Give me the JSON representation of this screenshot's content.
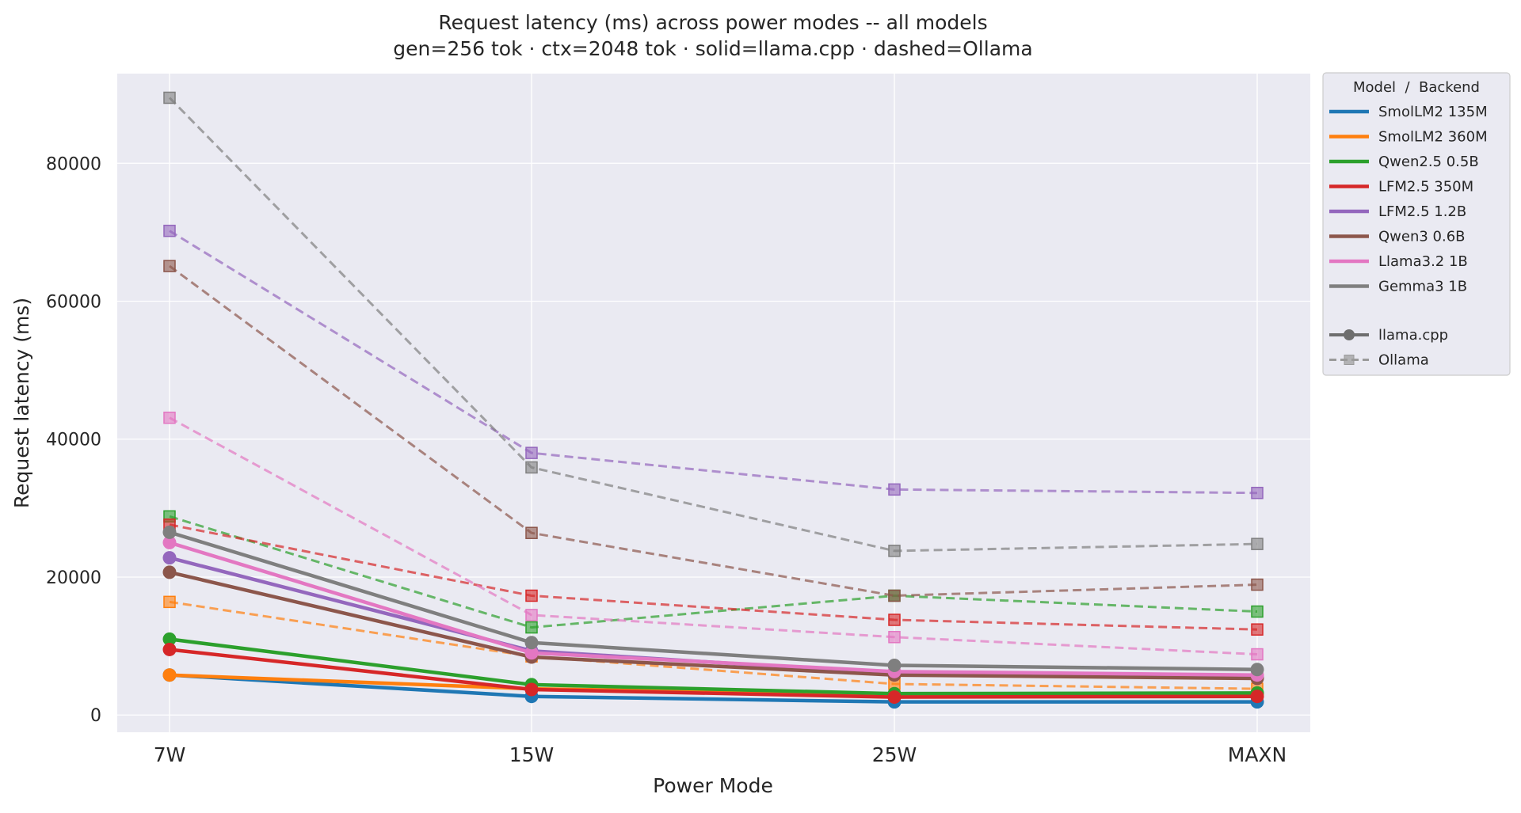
{
  "chart_data": {
    "type": "line",
    "title": "Request latency (ms) across power modes -- all models",
    "subtitle": "gen=256 tok · ctx=2048 tok · solid=llama.cpp · dashed=Ollama",
    "xlabel": "Power Mode",
    "ylabel": "Request latency (ms)",
    "categories": [
      "7W",
      "15W",
      "25W",
      "MAXN"
    ],
    "ylim": [
      -2500,
      93000
    ],
    "yticks": [
      0,
      20000,
      40000,
      60000,
      80000
    ],
    "ytick_labels": [
      "0",
      "20000",
      "40000",
      "60000",
      "80000"
    ],
    "grid": true,
    "legend_position": "outside-top-right",
    "legend_title": "Model  /  Backend",
    "legend_backends": [
      {
        "name": "llama.cpp",
        "style": "solid",
        "marker": "circle"
      },
      {
        "name": "Ollama",
        "style": "dashed",
        "marker": "square"
      }
    ],
    "series": [
      {
        "model": "SmolLM2 135M",
        "color": "#1f77b4",
        "llamacpp": [
          5800,
          2700,
          1900,
          1900
        ],
        "ollama": [
          null,
          null,
          null,
          null
        ]
      },
      {
        "model": "SmolLM2 360M",
        "color": "#ff7f0e",
        "llamacpp": [
          5800,
          3800,
          3000,
          3100
        ],
        "ollama": [
          16400,
          8500,
          4500,
          3800
        ]
      },
      {
        "model": "Qwen2.5 0.5B",
        "color": "#2ca02c",
        "llamacpp": [
          11000,
          4400,
          3100,
          3200
        ],
        "ollama": [
          28800,
          12700,
          17300,
          15000
        ]
      },
      {
        "model": "LFM2.5 350M",
        "color": "#d62728",
        "llamacpp": [
          9500,
          3700,
          2600,
          2700
        ],
        "ollama": [
          27600,
          17300,
          13800,
          12400
        ]
      },
      {
        "model": "LFM2.5 1.2B",
        "color": "#9467bd",
        "llamacpp": [
          22800,
          9300,
          6000,
          5500
        ],
        "ollama": [
          70200,
          38000,
          32700,
          32200
        ]
      },
      {
        "model": "Qwen3 0.6B",
        "color": "#8c564b",
        "llamacpp": [
          20700,
          8400,
          5800,
          5300
        ],
        "ollama": [
          65100,
          26400,
          17300,
          18900
        ]
      },
      {
        "model": "Llama3.2 1B",
        "color": "#e377c2",
        "llamacpp": [
          25000,
          9000,
          6300,
          5800
        ],
        "ollama": [
          43100,
          14500,
          11300,
          8800
        ]
      },
      {
        "model": "Gemma3 1B",
        "color": "#7f7f7f",
        "llamacpp": [
          26500,
          10500,
          7200,
          6600
        ],
        "ollama": [
          89500,
          35900,
          23800,
          24800
        ]
      }
    ]
  }
}
